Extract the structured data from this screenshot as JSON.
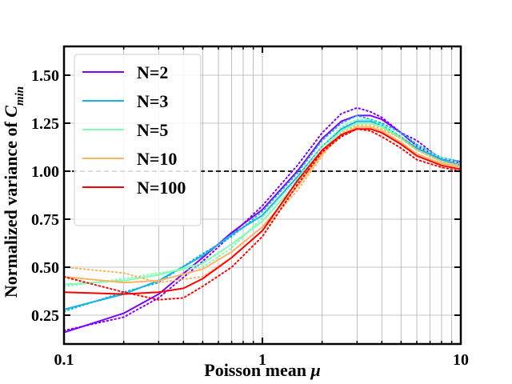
{
  "chart_data": {
    "type": "line",
    "xscale": "log",
    "xlim": [
      0.1,
      10
    ],
    "ylim": [
      0.1,
      1.65
    ],
    "grid": true,
    "legend_position": "upper-left",
    "xlabel": "Poisson mean μ",
    "ylabel": "Normalized variance of Cₘᵢₙ",
    "xlabel_text": "Poisson mean ",
    "xlabel_symbol": "μ",
    "ylabel_text": "Normalized variance of ",
    "ylabel_symbol": "C",
    "ylabel_subscript": "min",
    "x_ticks": [
      {
        "value": 0.1,
        "label": "0.1"
      },
      {
        "value": 1,
        "label": "1"
      },
      {
        "value": 10,
        "label": "10"
      }
    ],
    "y_ticks": [
      {
        "value": 0.25,
        "label": "0.25"
      },
      {
        "value": 0.5,
        "label": "0.50"
      },
      {
        "value": 0.75,
        "label": "0.75"
      },
      {
        "value": 1.0,
        "label": "1.00"
      },
      {
        "value": 1.25,
        "label": "1.25"
      },
      {
        "value": 1.5,
        "label": "1.50"
      }
    ],
    "reference_line": {
      "y": 1.0,
      "style": "dashed",
      "color": "#000000"
    },
    "series": [
      {
        "name": "N=2",
        "color": "#7f00ff",
        "x": [
          0.1,
          0.2,
          0.3,
          0.5,
          0.7,
          1.0,
          1.5,
          2.0,
          2.5,
          3.0,
          3.5,
          4.0,
          5.0,
          6.0,
          8.0,
          10.0
        ],
        "values": [
          0.16,
          0.26,
          0.36,
          0.55,
          0.68,
          0.8,
          1.0,
          1.17,
          1.26,
          1.29,
          1.29,
          1.27,
          1.2,
          1.13,
          1.07,
          1.04
        ],
        "noisy_values": [
          0.17,
          0.24,
          0.34,
          0.53,
          0.67,
          0.82,
          1.03,
          1.2,
          1.3,
          1.33,
          1.31,
          1.28,
          1.2,
          1.16,
          1.06,
          1.05
        ]
      },
      {
        "name": "N=3",
        "color": "#15b2e5",
        "x": [
          0.1,
          0.2,
          0.3,
          0.5,
          0.7,
          1.0,
          1.5,
          2.0,
          2.5,
          3.0,
          3.5,
          4.0,
          5.0,
          6.0,
          8.0,
          10.0
        ],
        "values": [
          0.28,
          0.36,
          0.43,
          0.56,
          0.67,
          0.77,
          0.97,
          1.13,
          1.22,
          1.26,
          1.26,
          1.24,
          1.18,
          1.12,
          1.06,
          1.03
        ],
        "noisy_values": [
          0.27,
          0.37,
          0.42,
          0.57,
          0.66,
          0.79,
          0.99,
          1.16,
          1.25,
          1.29,
          1.27,
          1.25,
          1.2,
          1.14,
          1.07,
          1.05
        ]
      },
      {
        "name": "N=5",
        "color": "#80ffb4",
        "x": [
          0.1,
          0.2,
          0.3,
          0.5,
          0.7,
          1.0,
          1.5,
          2.0,
          2.5,
          3.0,
          3.5,
          4.0,
          5.0,
          6.0,
          8.0,
          10.0
        ],
        "values": [
          0.41,
          0.43,
          0.46,
          0.52,
          0.62,
          0.74,
          0.94,
          1.11,
          1.21,
          1.25,
          1.25,
          1.23,
          1.17,
          1.11,
          1.05,
          1.02
        ],
        "noisy_values": [
          0.4,
          0.44,
          0.47,
          0.5,
          0.6,
          0.76,
          0.96,
          1.13,
          1.23,
          1.27,
          1.27,
          1.24,
          1.18,
          1.13,
          1.07,
          1.04
        ]
      },
      {
        "name": "N=10",
        "color": "#ffb360",
        "x": [
          0.1,
          0.2,
          0.3,
          0.5,
          0.7,
          1.0,
          1.5,
          2.0,
          2.5,
          3.0,
          3.5,
          4.0,
          5.0,
          6.0,
          8.0,
          10.0
        ],
        "values": [
          0.45,
          0.42,
          0.43,
          0.49,
          0.58,
          0.71,
          0.92,
          1.09,
          1.19,
          1.23,
          1.23,
          1.21,
          1.15,
          1.09,
          1.04,
          1.02
        ],
        "noisy_values": [
          0.5,
          0.47,
          0.42,
          0.45,
          0.55,
          0.69,
          0.9,
          1.08,
          1.2,
          1.24,
          1.24,
          1.22,
          1.17,
          1.11,
          1.05,
          1.03
        ]
      },
      {
        "name": "N=100",
        "color": "#ff0000",
        "x": [
          0.1,
          0.2,
          0.3,
          0.4,
          0.5,
          0.7,
          1.0,
          1.5,
          2.0,
          2.5,
          3.0,
          3.5,
          4.0,
          5.0,
          6.0,
          8.0,
          10.0
        ],
        "values": [
          0.37,
          0.36,
          0.37,
          0.39,
          0.44,
          0.55,
          0.69,
          0.95,
          1.11,
          1.19,
          1.22,
          1.22,
          1.2,
          1.14,
          1.08,
          1.03,
          1.01
        ],
        "noisy_values": [
          0.45,
          0.37,
          0.33,
          0.34,
          0.4,
          0.5,
          0.66,
          0.93,
          1.1,
          1.18,
          1.22,
          1.21,
          1.18,
          1.12,
          1.06,
          1.02,
          1.0
        ]
      }
    ]
  }
}
